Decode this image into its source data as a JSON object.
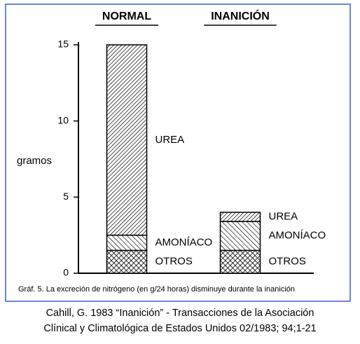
{
  "chart_data": {
    "type": "stacked-bar",
    "categories": [
      "NORMAL",
      "INANICIÓN"
    ],
    "series": [
      {
        "name": "OTROS",
        "color": "#000000",
        "pattern": "crosshatch",
        "values": [
          1.5,
          1.5
        ]
      },
      {
        "name": "AMONÍACO",
        "color": "#000000",
        "pattern": "hatch",
        "values": [
          1.0,
          1.9
        ]
      },
      {
        "name": "UREA",
        "color": "#000000",
        "pattern": "hatch-dense",
        "values": [
          12.5,
          0.6
        ]
      }
    ],
    "y_label": "gramos",
    "ylim": [
      0,
      15
    ],
    "yticks": [
      0,
      5,
      10,
      15
    ],
    "caption": "Gráf. 5. La excreción de nitrógeno (en g/24 horas) disminuye durante la inanición",
    "source": [
      "Cahill, G. 1983 “Inanición” - Transacciones de la Asociación",
      "Clínical y Climatológica de Estados Unidos 02/1983; 94;1-21"
    ]
  }
}
